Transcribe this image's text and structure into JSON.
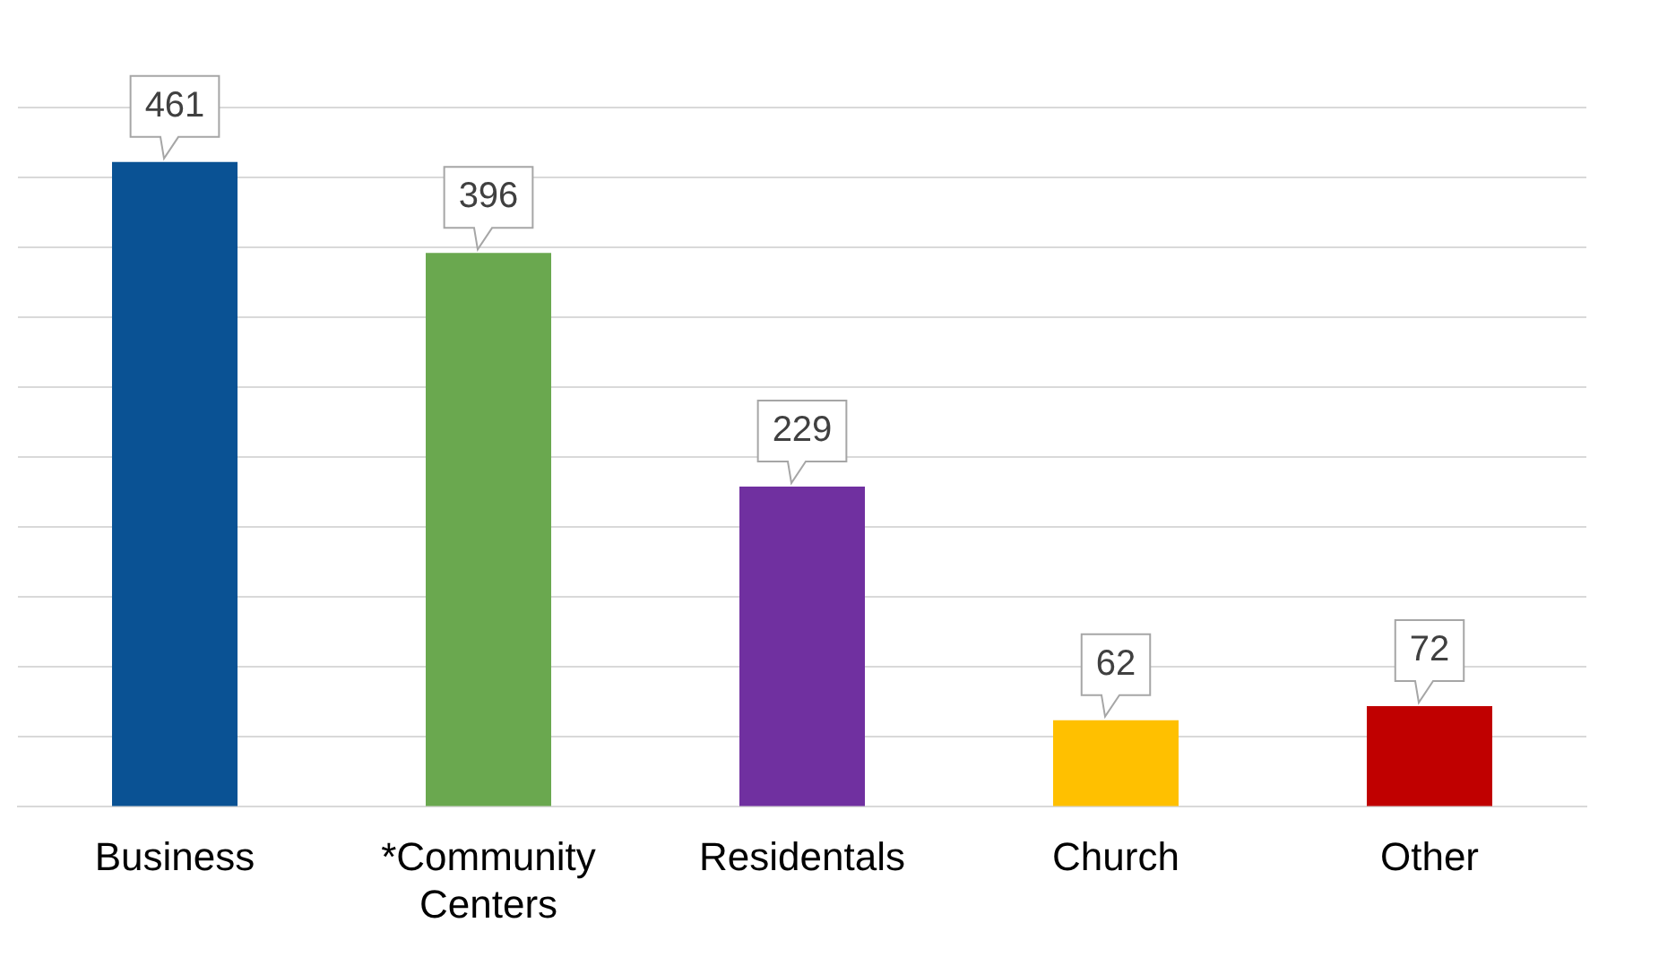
{
  "chart_data": {
    "type": "bar",
    "categories": [
      "Business",
      "*Community Centers",
      "Residentals",
      "Church",
      "Other"
    ],
    "values": [
      461,
      396,
      229,
      62,
      72
    ],
    "colors": [
      "#0a5294",
      "#6aa84f",
      "#7030a0",
      "#ffc000",
      "#c00000"
    ],
    "ylim": [
      0,
      500
    ],
    "yticks": [
      {
        "value": 0,
        "label": null
      },
      {
        "value": 50,
        "label": null
      },
      {
        "value": 100,
        "label": null
      },
      {
        "value": 150,
        "label": null
      },
      {
        "value": 200,
        "label": null
      },
      {
        "value": 250,
        "label": null
      },
      {
        "value": 300,
        "label": null
      },
      {
        "value": 350,
        "label": null
      },
      {
        "value": 400,
        "label": null
      },
      {
        "value": 450,
        "label": null
      },
      {
        "value": 500,
        "label": null
      }
    ],
    "grid": "y",
    "tick_labels": "x",
    "data_labels": true,
    "legend": false
  }
}
